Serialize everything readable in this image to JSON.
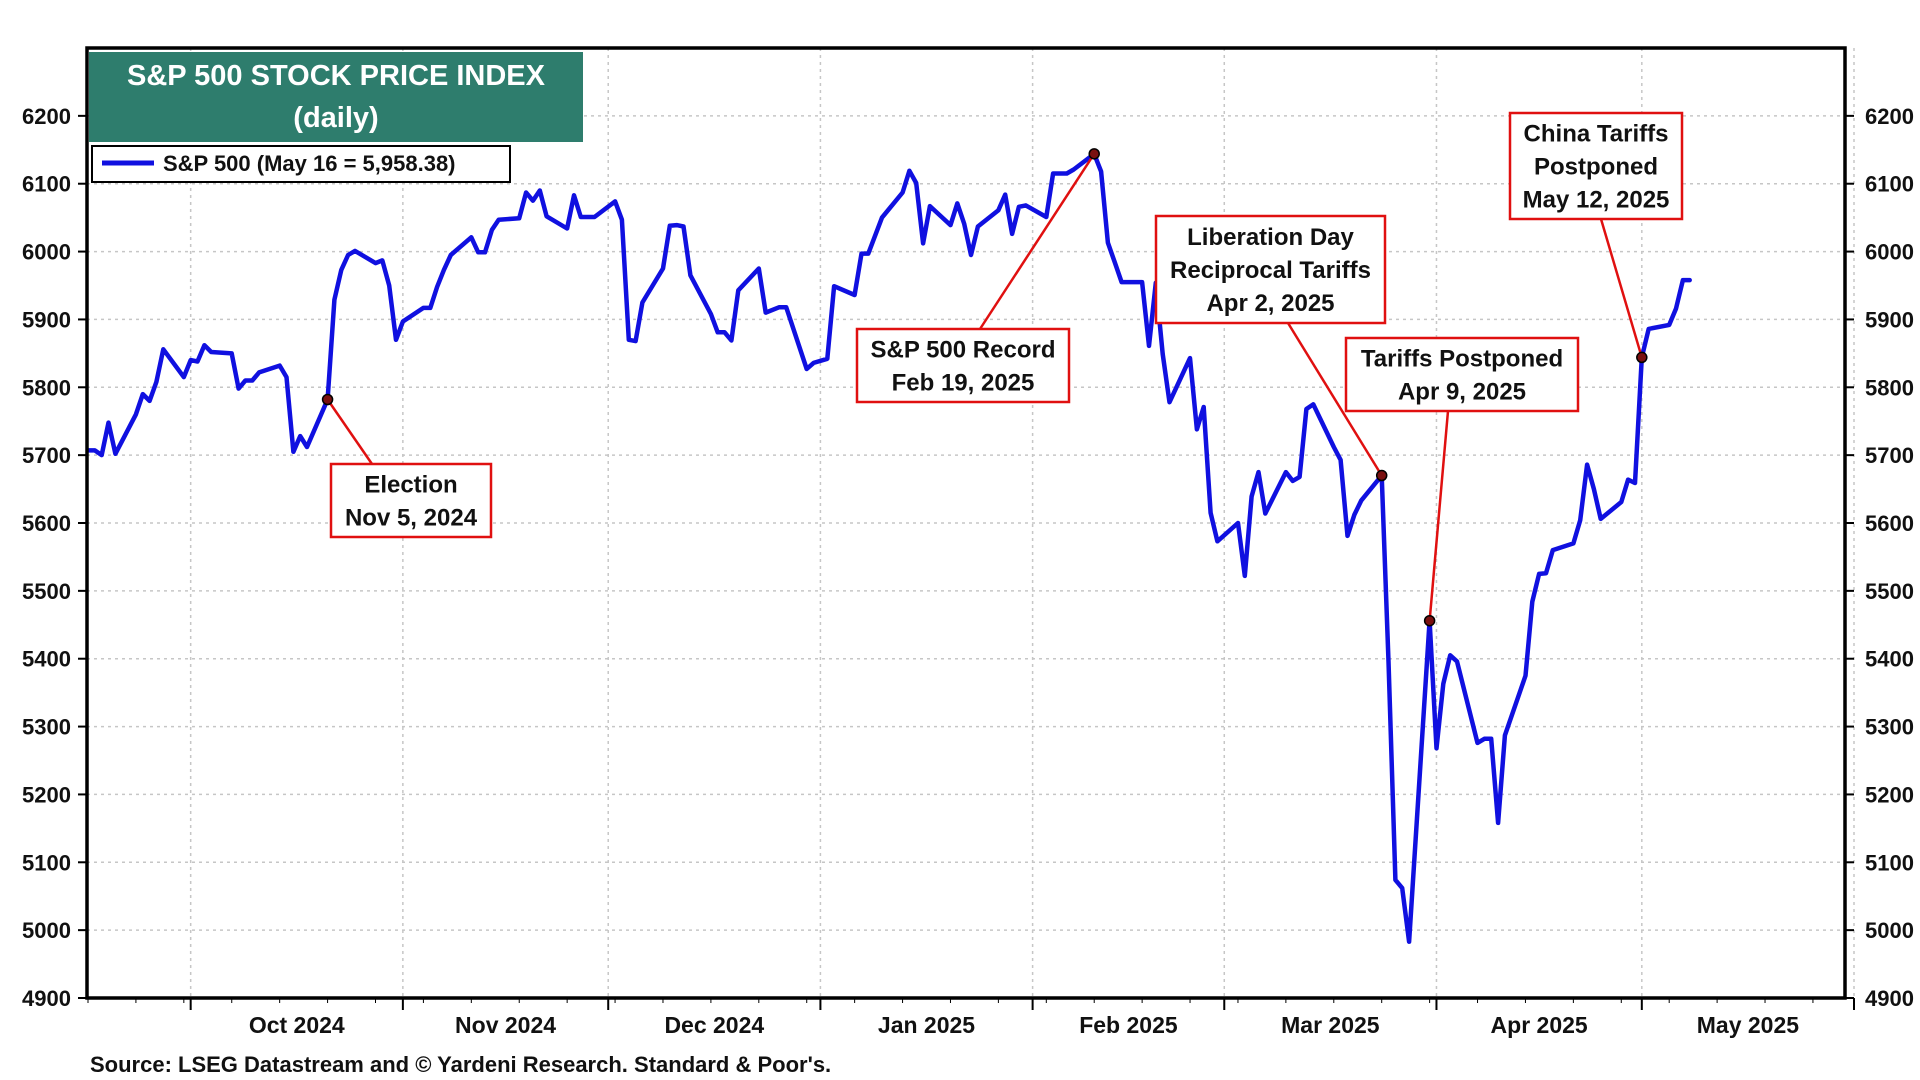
{
  "chart_data": {
    "type": "line",
    "title": "S&P 500 STOCK PRICE INDEX",
    "subtitle": "(daily)",
    "xlabel": "",
    "ylabel": "",
    "x_tick_labels": [
      "Oct 2024",
      "Nov 2024",
      "Dec 2024",
      "Jan 2025",
      "Feb 2025",
      "Mar 2025",
      "Apr 2025",
      "May 2025"
    ],
    "ylim": [
      4900,
      6300
    ],
    "y_ticks": [
      4900,
      5000,
      5100,
      5200,
      5300,
      5400,
      5500,
      5600,
      5700,
      5800,
      5900,
      6000,
      6100,
      6200
    ],
    "grid": true,
    "legend_position": "top-left",
    "series": [
      {
        "name": "S&P 500 (May 16 = 5,958.38)",
        "color": "#1010e0",
        "points": [
          [
            "2024-09-16",
            5707
          ],
          [
            "2024-09-17",
            5707
          ],
          [
            "2024-09-18",
            5700
          ],
          [
            "2024-09-19",
            5748
          ],
          [
            "2024-09-20",
            5702
          ],
          [
            "2024-09-23",
            5760
          ],
          [
            "2024-09-24",
            5790
          ],
          [
            "2024-09-25",
            5780
          ],
          [
            "2024-09-26",
            5808
          ],
          [
            "2024-09-27",
            5856
          ],
          [
            "2024-09-30",
            5815
          ],
          [
            "2024-10-01",
            5840
          ],
          [
            "2024-10-02",
            5838
          ],
          [
            "2024-10-03",
            5862
          ],
          [
            "2024-10-04",
            5852
          ],
          [
            "2024-10-07",
            5850
          ],
          [
            "2024-10-08",
            5798
          ],
          [
            "2024-10-09",
            5810
          ],
          [
            "2024-10-10",
            5810
          ],
          [
            "2024-10-11",
            5822
          ],
          [
            "2024-10-14",
            5832
          ],
          [
            "2024-10-15",
            5815
          ],
          [
            "2024-10-16",
            5705
          ],
          [
            "2024-10-17",
            5728
          ],
          [
            "2024-10-18",
            5712
          ],
          [
            "2024-10-21",
            5782
          ],
          [
            "2024-10-22",
            5929
          ],
          [
            "2024-10-23",
            5973
          ],
          [
            "2024-10-24",
            5995
          ],
          [
            "2024-10-25",
            6001
          ],
          [
            "2024-10-28",
            5983
          ],
          [
            "2024-10-29",
            5987
          ],
          [
            "2024-10-30",
            5950
          ],
          [
            "2024-10-31",
            5870
          ],
          [
            "2024-11-01",
            5897
          ],
          [
            "2024-11-04",
            5917
          ],
          [
            "2024-11-05",
            5917
          ],
          [
            "2024-11-06",
            5948
          ],
          [
            "2024-11-07",
            5973
          ],
          [
            "2024-11-08",
            5995
          ],
          [
            "2024-11-11",
            6021
          ],
          [
            "2024-11-12",
            5999
          ],
          [
            "2024-11-13",
            5999
          ],
          [
            "2024-11-14",
            6032
          ],
          [
            "2024-11-15",
            6047
          ],
          [
            "2024-11-18",
            6049
          ],
          [
            "2024-11-19",
            6087
          ],
          [
            "2024-11-20",
            6075
          ],
          [
            "2024-11-21",
            6090
          ],
          [
            "2024-11-22",
            6052
          ],
          [
            "2024-11-25",
            6034
          ],
          [
            "2024-11-26",
            6083
          ],
          [
            "2024-11-27",
            6051
          ],
          [
            "2024-11-29",
            6051
          ],
          [
            "2024-12-02",
            6074
          ],
          [
            "2024-12-03",
            6047
          ],
          [
            "2024-12-04",
            5870
          ],
          [
            "2024-12-05",
            5868
          ],
          [
            "2024-12-06",
            5925
          ],
          [
            "2024-12-09",
            5975
          ],
          [
            "2024-12-10",
            6038
          ],
          [
            "2024-12-11",
            6039
          ],
          [
            "2024-12-12",
            6037
          ],
          [
            "2024-12-13",
            5965
          ],
          [
            "2024-12-16",
            5908
          ],
          [
            "2024-12-17",
            5881
          ],
          [
            "2024-12-18",
            5881
          ],
          [
            "2024-12-19",
            5869
          ],
          [
            "2024-12-20",
            5943
          ],
          [
            "2024-12-23",
            5975
          ],
          [
            "2024-12-24",
            5910
          ],
          [
            "2024-12-26",
            5918
          ],
          [
            "2024-12-27",
            5918
          ],
          [
            "2024-12-30",
            5827
          ],
          [
            "2024-12-31",
            5836
          ],
          [
            "2025-01-02",
            5842
          ],
          [
            "2025-01-03",
            5949
          ],
          [
            "2025-01-06",
            5936
          ],
          [
            "2025-01-07",
            5997
          ],
          [
            "2025-01-08",
            5997
          ],
          [
            "2025-01-10",
            6050
          ],
          [
            "2025-01-13",
            6087
          ],
          [
            "2025-01-14",
            6119
          ],
          [
            "2025-01-15",
            6101
          ],
          [
            "2025-01-16",
            6012
          ],
          [
            "2025-01-17",
            6067
          ],
          [
            "2025-01-20",
            6039
          ],
          [
            "2025-01-21",
            6071
          ],
          [
            "2025-01-22",
            6041
          ],
          [
            "2025-01-23",
            5995
          ],
          [
            "2025-01-24",
            6037
          ],
          [
            "2025-01-27",
            6061
          ],
          [
            "2025-01-28",
            6084
          ],
          [
            "2025-01-29",
            6026
          ],
          [
            "2025-01-30",
            6066
          ],
          [
            "2025-01-31",
            6068
          ],
          [
            "2025-02-03",
            6051
          ],
          [
            "2025-02-04",
            6115
          ],
          [
            "2025-02-05",
            6115
          ],
          [
            "2025-02-06",
            6115
          ],
          [
            "2025-02-07",
            6121
          ],
          [
            "2025-02-10",
            6144
          ],
          [
            "2025-02-11",
            6118
          ],
          [
            "2025-02-12",
            6013
          ],
          [
            "2025-02-13",
            5984
          ],
          [
            "2025-02-14",
            5955
          ],
          [
            "2025-02-17",
            5955
          ],
          [
            "2025-02-18",
            5861
          ],
          [
            "2025-02-19",
            5954
          ],
          [
            "2025-02-20",
            5849
          ],
          [
            "2025-02-21",
            5778
          ],
          [
            "2025-02-24",
            5843
          ],
          [
            "2025-02-25",
            5738
          ],
          [
            "2025-02-26",
            5771
          ],
          [
            "2025-02-27",
            5615
          ],
          [
            "2025-02-28",
            5573
          ],
          [
            "2025-03-03",
            5600
          ],
          [
            "2025-03-04",
            5522
          ],
          [
            "2025-03-05",
            5639
          ],
          [
            "2025-03-06",
            5675
          ],
          [
            "2025-03-07",
            5614
          ],
          [
            "2025-03-10",
            5675
          ],
          [
            "2025-03-11",
            5662
          ],
          [
            "2025-03-12",
            5668
          ],
          [
            "2025-03-13",
            5768
          ],
          [
            "2025-03-14",
            5775
          ],
          [
            "2025-03-17",
            5712
          ],
          [
            "2025-03-18",
            5693
          ],
          [
            "2025-03-19",
            5581
          ],
          [
            "2025-03-20",
            5612
          ],
          [
            "2025-03-21",
            5633
          ],
          [
            "2025-03-24",
            5670
          ],
          [
            "2025-03-25",
            5396
          ],
          [
            "2025-03-26",
            5074
          ],
          [
            "2025-03-27",
            5062
          ],
          [
            "2025-03-28",
            4983
          ],
          [
            "2025-03-31",
            5456
          ],
          [
            "2025-04-01",
            5268
          ],
          [
            "2025-04-02",
            5363
          ],
          [
            "2025-04-03",
            5405
          ],
          [
            "2025-04-04",
            5396
          ],
          [
            "2025-04-07",
            5276
          ],
          [
            "2025-04-08",
            5282
          ],
          [
            "2025-04-09",
            5282
          ],
          [
            "2025-04-10",
            5158
          ],
          [
            "2025-04-11",
            5287
          ],
          [
            "2025-04-14",
            5375
          ],
          [
            "2025-04-15",
            5484
          ],
          [
            "2025-04-16",
            5525
          ],
          [
            "2025-04-17",
            5526
          ],
          [
            "2025-04-18",
            5560
          ],
          [
            "2025-04-21",
            5570
          ],
          [
            "2025-04-22",
            5604
          ],
          [
            "2025-04-23",
            5686
          ],
          [
            "2025-04-24",
            5650
          ],
          [
            "2025-04-25",
            5606
          ],
          [
            "2025-04-28",
            5631
          ],
          [
            "2025-04-29",
            5664
          ],
          [
            "2025-04-30",
            5659
          ],
          [
            "2025-05-01",
            5844
          ],
          [
            "2025-05-02",
            5886
          ],
          [
            "2025-05-05",
            5892
          ],
          [
            "2025-05-06",
            5916
          ],
          [
            "2025-05-07",
            5958
          ],
          [
            "2025-05-08",
            5958
          ]
        ]
      }
    ],
    "annotations": [
      {
        "lines": [
          "Election",
          "Nov 5, 2024"
        ],
        "point": [
          "2024-10-21",
          5782
        ]
      },
      {
        "lines": [
          "S&P 500 Record",
          "Feb 19, 2025"
        ],
        "point": [
          "2025-02-10",
          6144
        ]
      },
      {
        "lines": [
          "Liberation Day",
          "Reciprocal Tariffs",
          "Apr 2, 2025"
        ],
        "point": [
          "2025-03-24",
          5670
        ]
      },
      {
        "lines": [
          "Tariffs Postponed",
          "Apr 9, 2025"
        ],
        "point": [
          "2025-03-31",
          5456
        ]
      },
      {
        "lines": [
          "China Tariffs",
          "Postponed",
          "May 12, 2025"
        ],
        "point": [
          "2025-05-01",
          5844
        ]
      }
    ],
    "source": "Source: LSEG Datastream and © Yardeni Research. Standard & Poor's.",
    "colors": {
      "line": "#1010e0",
      "title_bg": "#2e7d6d",
      "annotation_border": "#e01010",
      "marker": "#7a1010"
    }
  }
}
